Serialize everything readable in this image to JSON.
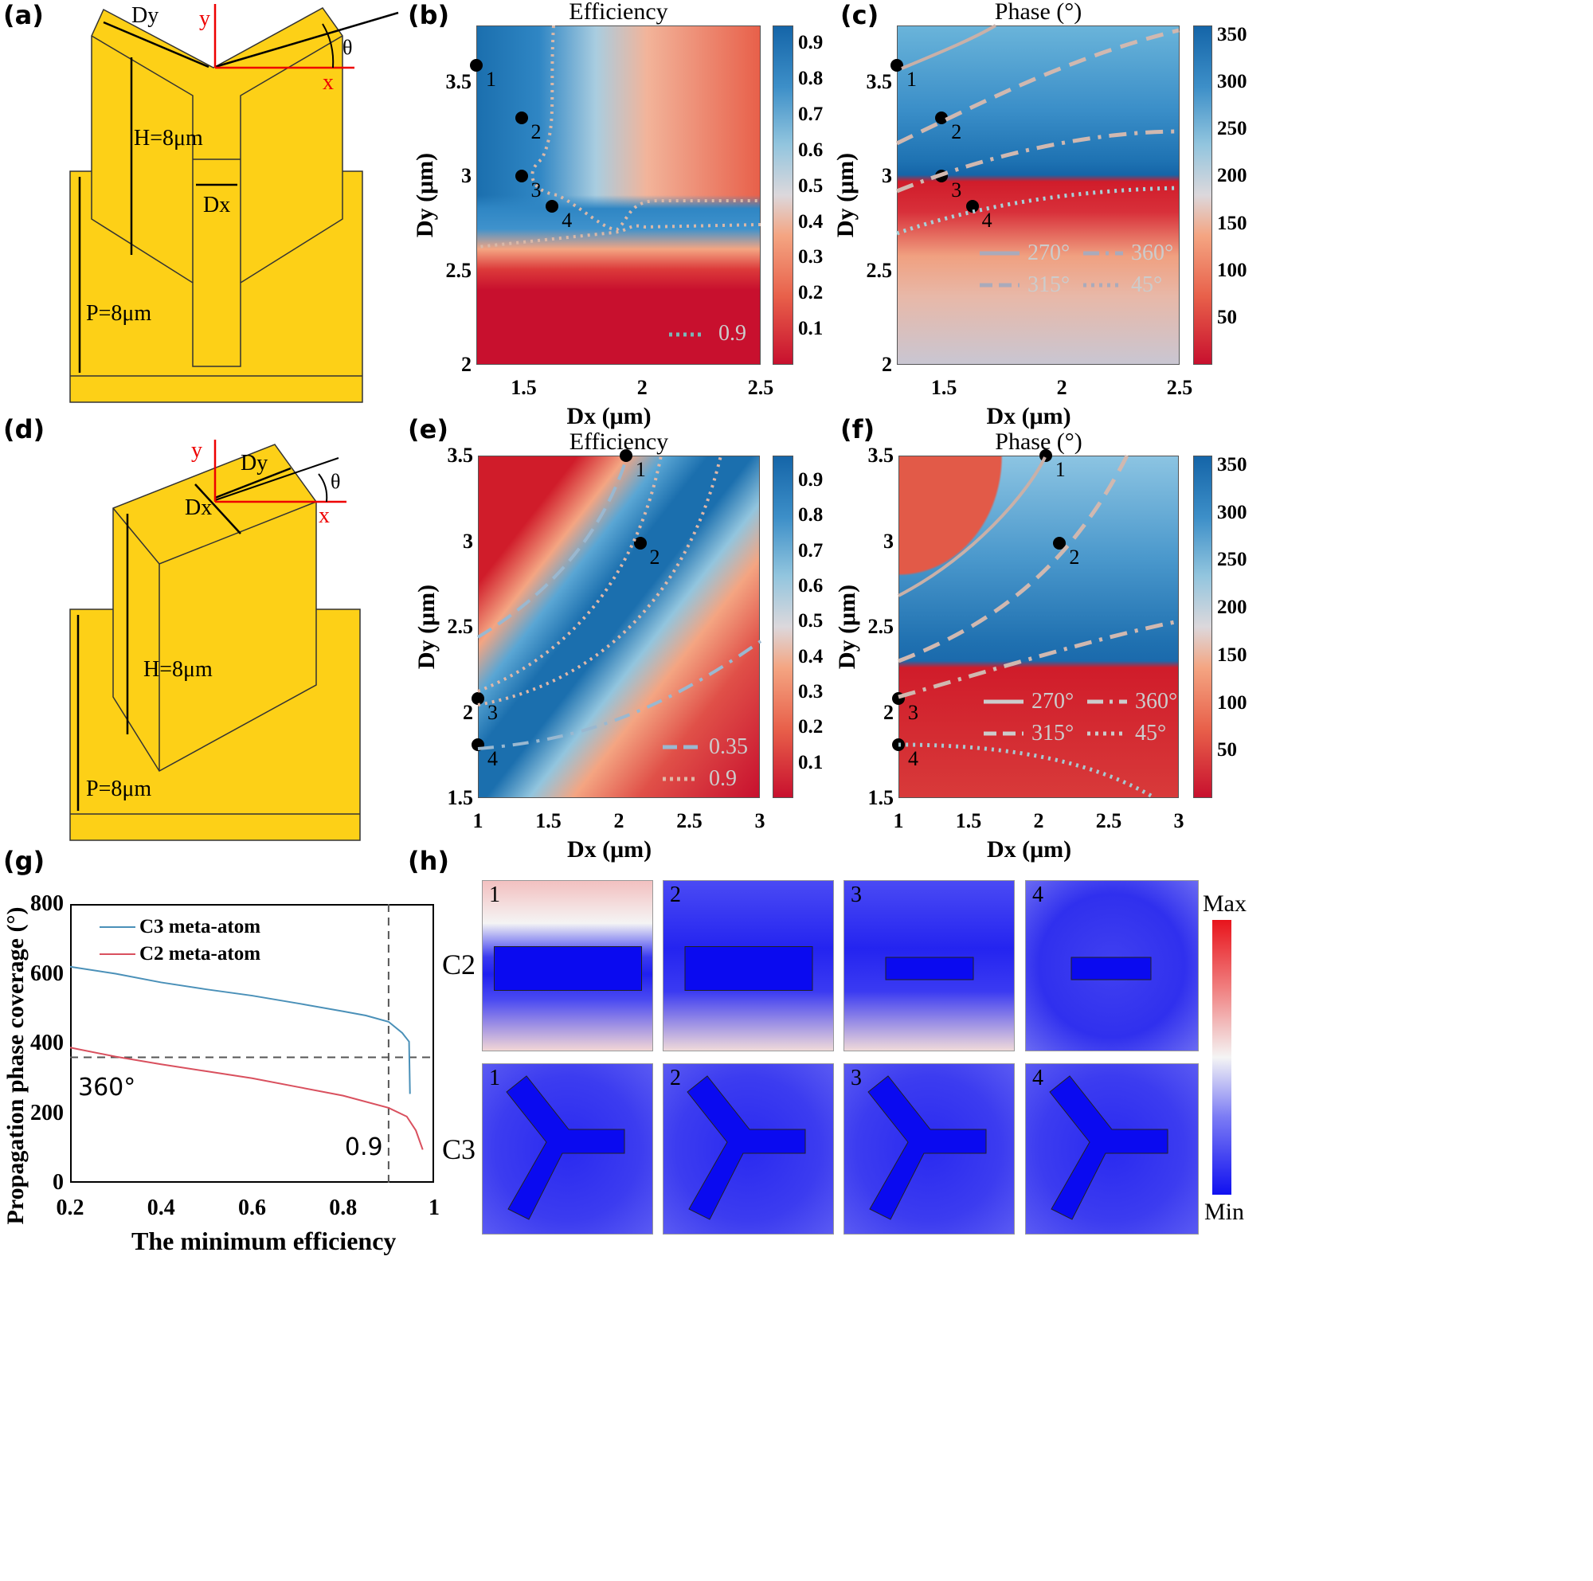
{
  "panel_labels": {
    "a": "(a)",
    "b": "(b)",
    "c": "(c)",
    "d": "(d)",
    "e": "(e)",
    "f": "(f)",
    "g": "(g)",
    "h": "(h)"
  },
  "diagram_a": {
    "dy": "Dy",
    "x": "x",
    "y": "y",
    "theta": "θ",
    "h": "H=8μm",
    "dx": "Dx",
    "p": "P=8μm",
    "color": "#FDD017"
  },
  "diagram_d": {
    "dy": "Dy",
    "x": "x",
    "y": "y",
    "theta": "θ",
    "h": "H=8μm",
    "dx": "Dx",
    "p": "P=8μm",
    "color": "#FDD017"
  },
  "chart_data": [
    {
      "id": "b",
      "type": "heatmap",
      "title": "Efficiency",
      "xlabel": "Dx (μm)",
      "ylabel": "Dy (μm)",
      "xlim": [
        1.3,
        2.5
      ],
      "ylim": [
        2,
        3.8
      ],
      "xticks": [
        "1.5",
        "2",
        "2.5"
      ],
      "xtick_values": [
        1.5,
        2,
        2.5
      ],
      "yticks": [
        "2",
        "2.5",
        "3",
        "3.5"
      ],
      "ytick_values": [
        2,
        2.5,
        3,
        3.5
      ],
      "colorbar": {
        "range": [
          0,
          0.95
        ],
        "ticks": [
          "0.1",
          "0.2",
          "0.3",
          "0.4",
          "0.5",
          "0.6",
          "0.7",
          "0.8",
          "0.9"
        ],
        "tick_values": [
          0.1,
          0.2,
          0.3,
          0.4,
          0.5,
          0.6,
          0.7,
          0.8,
          0.9
        ]
      },
      "points": [
        {
          "label": "1",
          "x": 1.3,
          "y": 3.59
        },
        {
          "label": "2",
          "x": 1.49,
          "y": 3.31
        },
        {
          "label": "3",
          "x": 1.49,
          "y": 3.0
        },
        {
          "label": "4",
          "x": 1.62,
          "y": 2.84
        }
      ],
      "contours": [
        {
          "level": "0.9",
          "style": "dotted"
        }
      ]
    },
    {
      "id": "c",
      "type": "heatmap",
      "title": "Phase (°)",
      "xlabel": "Dx (μm)",
      "ylabel": "Dy (μm)",
      "xlim": [
        1.3,
        2.5
      ],
      "ylim": [
        2,
        3.8
      ],
      "xticks": [
        "1.5",
        "2",
        "2.5"
      ],
      "xtick_values": [
        1.5,
        2,
        2.5
      ],
      "yticks": [
        "2",
        "2.5",
        "3",
        "3.5"
      ],
      "ytick_values": [
        2,
        2.5,
        3,
        3.5
      ],
      "colorbar": {
        "range": [
          0,
          360
        ],
        "ticks": [
          "50",
          "100",
          "150",
          "200",
          "250",
          "300",
          "350"
        ],
        "tick_values": [
          50,
          100,
          150,
          200,
          250,
          300,
          350
        ]
      },
      "points": [
        {
          "label": "1",
          "x": 1.3,
          "y": 3.59
        },
        {
          "label": "2",
          "x": 1.49,
          "y": 3.31
        },
        {
          "label": "3",
          "x": 1.49,
          "y": 3.0
        },
        {
          "label": "4",
          "x": 1.62,
          "y": 2.84
        }
      ],
      "contours": [
        {
          "level": "270°",
          "style": "solid"
        },
        {
          "level": "360°",
          "style": "dashdot"
        },
        {
          "level": "315°",
          "style": "dashed"
        },
        {
          "level": "45°",
          "style": "dotted"
        }
      ]
    },
    {
      "id": "e",
      "type": "heatmap",
      "title": "Efficiency",
      "xlabel": "Dx (μm)",
      "ylabel": "Dy (μm)",
      "xlim": [
        1,
        3
      ],
      "ylim": [
        1.5,
        3.5
      ],
      "xticks": [
        "1",
        "1.5",
        "2",
        "2.5",
        "3"
      ],
      "xtick_values": [
        1,
        1.5,
        2,
        2.5,
        3
      ],
      "yticks": [
        "1.5",
        "2",
        "2.5",
        "3",
        "3.5"
      ],
      "ytick_values": [
        1.5,
        2,
        2.5,
        3,
        3.5
      ],
      "colorbar": {
        "range": [
          0,
          0.97
        ],
        "ticks": [
          "0.1",
          "0.2",
          "0.3",
          "0.4",
          "0.5",
          "0.6",
          "0.7",
          "0.8",
          "0.9"
        ],
        "tick_values": [
          0.1,
          0.2,
          0.3,
          0.4,
          0.5,
          0.6,
          0.7,
          0.8,
          0.9
        ]
      },
      "points": [
        {
          "label": "1",
          "x": 2.05,
          "y": 3.5
        },
        {
          "label": "2",
          "x": 2.15,
          "y": 2.99
        },
        {
          "label": "3",
          "x": 1.0,
          "y": 2.08
        },
        {
          "label": "4",
          "x": 1.0,
          "y": 1.81
        }
      ],
      "contours": [
        {
          "level": "0.35",
          "style": "dashed"
        },
        {
          "level": "0.9",
          "style": "dotted"
        }
      ]
    },
    {
      "id": "f",
      "type": "heatmap",
      "title": "Phase (°)",
      "xlabel": "Dx (μm)",
      "ylabel": "Dy (μm)",
      "xlim": [
        1,
        3
      ],
      "ylim": [
        1.5,
        3.5
      ],
      "xticks": [
        "1",
        "1.5",
        "2",
        "2.5",
        "3"
      ],
      "xtick_values": [
        1,
        1.5,
        2,
        2.5,
        3
      ],
      "yticks": [
        "1.5",
        "2",
        "2.5",
        "3",
        "3.5"
      ],
      "ytick_values": [
        1.5,
        2,
        2.5,
        3,
        3.5
      ],
      "colorbar": {
        "range": [
          0,
          360
        ],
        "ticks": [
          "50",
          "100",
          "150",
          "200",
          "250",
          "300",
          "350"
        ],
        "tick_values": [
          50,
          100,
          150,
          200,
          250,
          300,
          350
        ]
      },
      "points": [
        {
          "label": "1",
          "x": 2.05,
          "y": 3.5
        },
        {
          "label": "2",
          "x": 2.15,
          "y": 2.99
        },
        {
          "label": "3",
          "x": 1.0,
          "y": 2.08
        },
        {
          "label": "4",
          "x": 1.0,
          "y": 1.81
        }
      ],
      "contours": [
        {
          "level": "270°",
          "style": "solid"
        },
        {
          "level": "360°",
          "style": "dashdot"
        },
        {
          "level": "315°",
          "style": "dashed"
        },
        {
          "level": "45°",
          "style": "dotted"
        }
      ]
    },
    {
      "id": "g",
      "type": "line",
      "xlabel": "The minimum efficiency",
      "ylabel": "Propagation phase coverage (°)",
      "xlim": [
        0.2,
        1
      ],
      "ylim": [
        0,
        800
      ],
      "xticks": [
        "0.2",
        "0.4",
        "0.6",
        "0.8",
        "1"
      ],
      "xtick_values": [
        0.2,
        0.4,
        0.6,
        0.8,
        1
      ],
      "yticks": [
        "0",
        "200",
        "400",
        "600",
        "800"
      ],
      "ytick_values": [
        0,
        200,
        400,
        600,
        800
      ],
      "legend": "top-left",
      "reference_lines": [
        {
          "axis": "y",
          "value": 360,
          "label": "360°"
        },
        {
          "axis": "x",
          "value": 0.9,
          "label": "0.9"
        }
      ],
      "series": [
        {
          "name": "C3 meta-atom",
          "color": "#4a90b8",
          "x": [
            0.2,
            0.3,
            0.4,
            0.5,
            0.6,
            0.7,
            0.8,
            0.85,
            0.9,
            0.93,
            0.945,
            0.947
          ],
          "y": [
            620,
            600,
            575,
            555,
            537,
            515,
            492,
            480,
            462,
            430,
            405,
            255
          ]
        },
        {
          "name": "C2 meta-atom",
          "color": "#d9505e",
          "x": [
            0.2,
            0.3,
            0.4,
            0.5,
            0.6,
            0.7,
            0.8,
            0.9,
            0.94,
            0.96,
            0.975
          ],
          "y": [
            388,
            362,
            340,
            320,
            300,
            275,
            250,
            215,
            190,
            150,
            95
          ]
        }
      ]
    }
  ],
  "field_maps": {
    "rows": [
      "C2",
      "C3"
    ],
    "columns": [
      "1",
      "2",
      "3",
      "4"
    ],
    "colorbar": {
      "max": "Max",
      "min": "Min"
    }
  }
}
